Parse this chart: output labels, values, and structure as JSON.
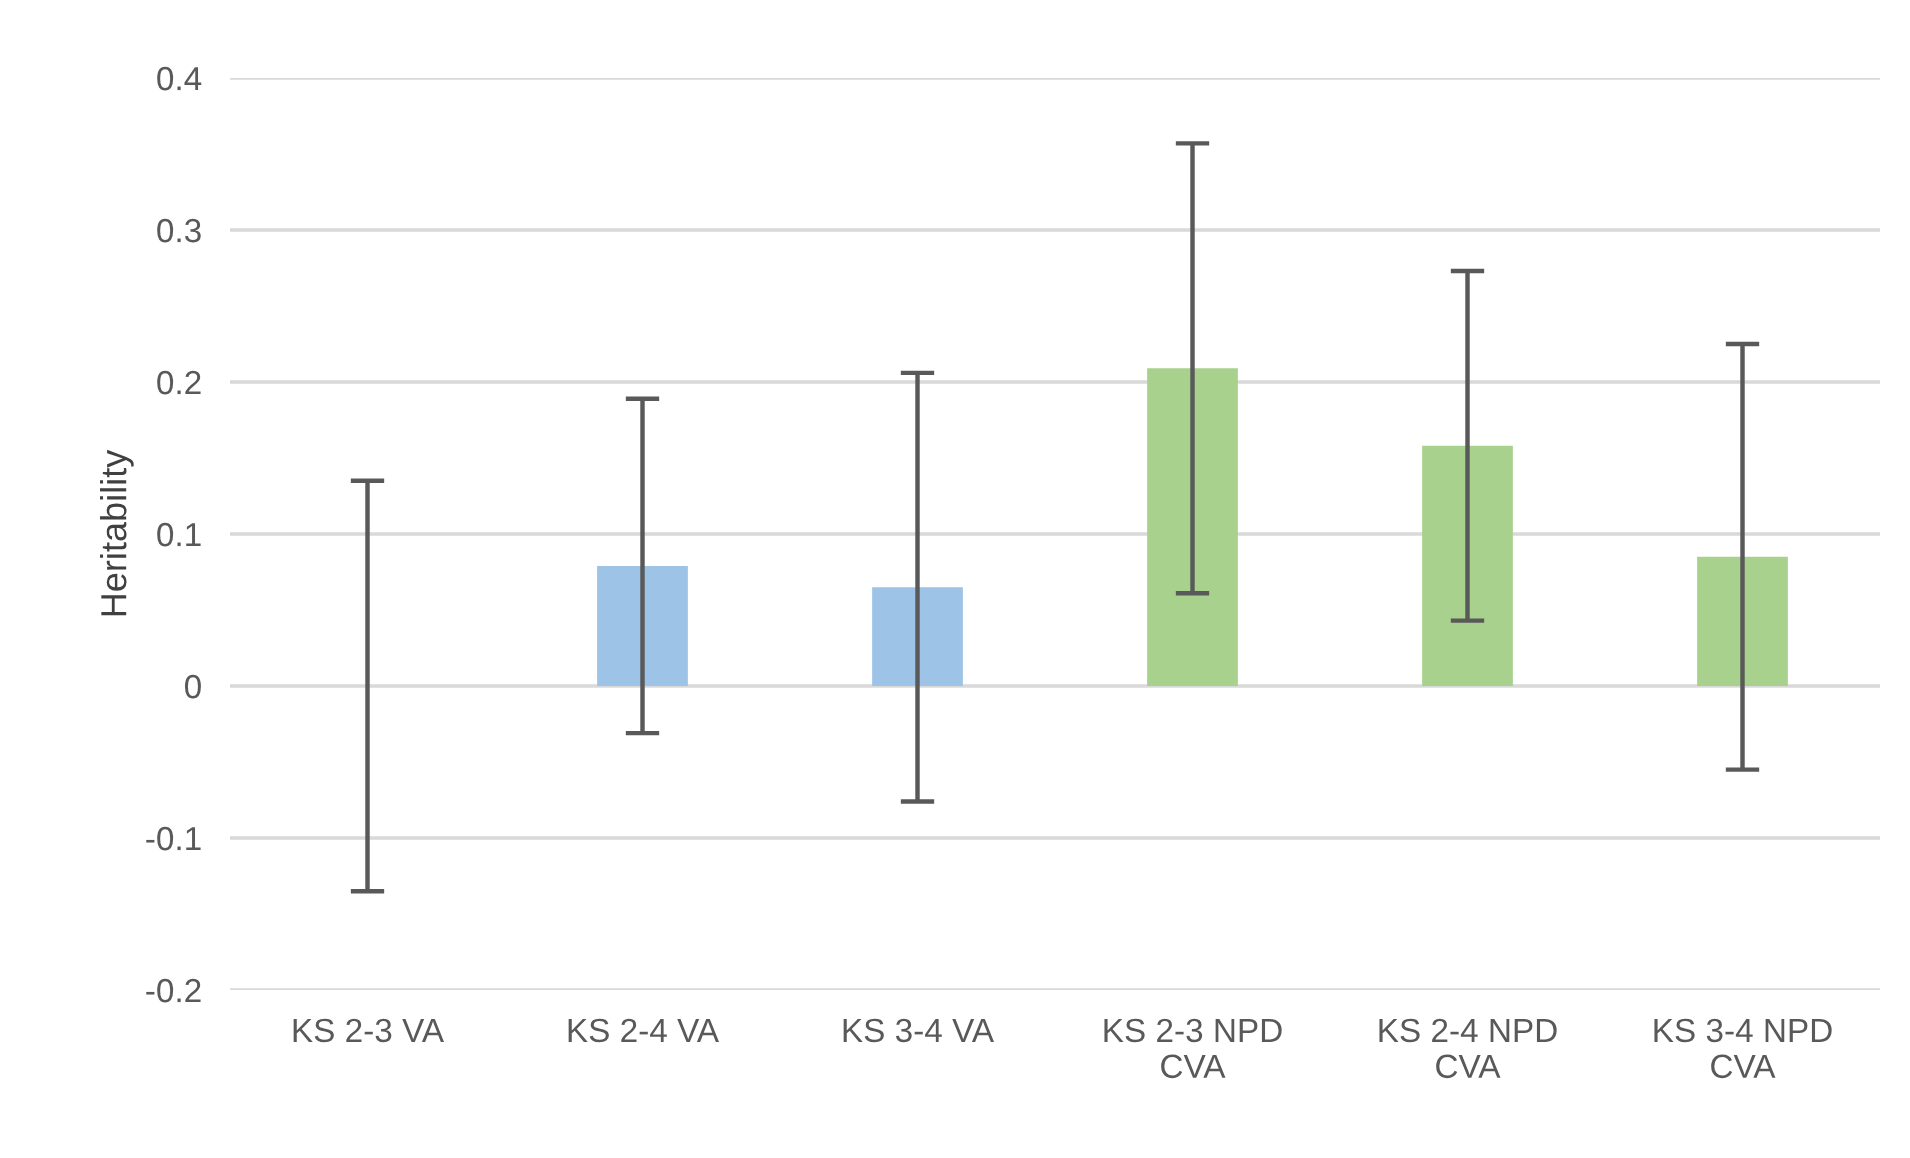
{
  "chart_data": {
    "type": "bar",
    "ylabel": "Heritability",
    "categories": [
      "KS 2-3 VA",
      "KS 2-4 VA",
      "KS 3-4 VA",
      "KS 2-3 NPD\nCVA",
      "KS 2-4 NPD\nCVA",
      "KS 3-4 NPD\nCVA"
    ],
    "values": [
      0,
      0.079,
      0.065,
      0.209,
      0.158,
      0.085
    ],
    "errors": [
      0.135,
      0.11,
      0.141,
      0.148,
      0.115,
      0.14
    ],
    "colors": [
      "#9dc3e6",
      "#9dc3e6",
      "#9dc3e6",
      "#a9d18e",
      "#a9d18e",
      "#a9d18e"
    ],
    "ylim": [
      -0.2,
      0.4
    ],
    "yticks": [
      -0.2,
      -0.1,
      0,
      0.1,
      0.2,
      0.3,
      0.4
    ],
    "grid": "y"
  }
}
